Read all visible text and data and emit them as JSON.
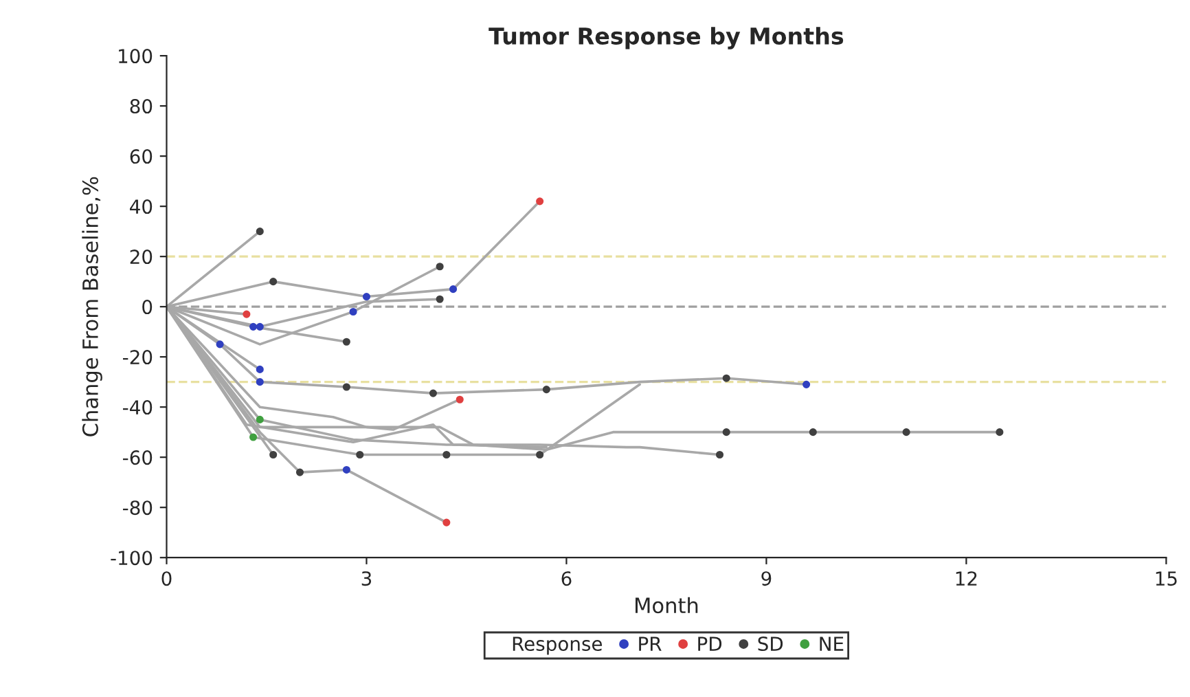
{
  "chart_data": {
    "type": "line",
    "title": "Tumor Response by Months",
    "xlabel": "Month",
    "ylabel": "Change From Baseline,%",
    "legend_title": "Response",
    "legend": "bottom",
    "grid": false,
    "marker": "none",
    "line_style": "solid",
    "xlim": [
      0,
      15
    ],
    "xticks": [
      0,
      3,
      6,
      9,
      12,
      15
    ],
    "ylim": [
      -100,
      100
    ],
    "yticks": [
      -100,
      -80,
      -60,
      -40,
      -20,
      0,
      20,
      40,
      60,
      80,
      100
    ],
    "ref_lines": [
      {
        "axis": "y",
        "value": 20,
        "color": "#e8e0a0",
        "line_style": "dashed"
      },
      {
        "axis": "y",
        "value": 0,
        "color": "#a0a0a0",
        "line_style": "dashed"
      },
      {
        "axis": "y",
        "value": -30,
        "color": "#e8e0a0",
        "line_style": "dashed"
      }
    ],
    "series": [
      {
        "color": "#a8a8a8",
        "x": [
          0,
          1.4
        ],
        "values": [
          0,
          30
        ]
      },
      {
        "color": "#a8a8a8",
        "x": [
          0,
          1.6,
          3.0,
          4.3,
          5.6
        ],
        "values": [
          0,
          10,
          4,
          7,
          42
        ]
      },
      {
        "color": "#a8a8a8",
        "x": [
          0,
          1.2
        ],
        "values": [
          0,
          -3
        ]
      },
      {
        "color": "#a8a8a8",
        "x": [
          0,
          1.3,
          2.7
        ],
        "values": [
          0,
          -8,
          -14
        ]
      },
      {
        "color": "#a8a8a8",
        "x": [
          0,
          1.4,
          3.0,
          4.1
        ],
        "values": [
          0,
          -8,
          2,
          3
        ]
      },
      {
        "color": "#a8a8a8",
        "x": [
          0,
          1.4,
          2.8,
          4.1
        ],
        "values": [
          0,
          -15,
          -2,
          16
        ]
      },
      {
        "color": "#a8a8a8",
        "x": [
          0,
          0.8,
          1.4,
          2.7,
          4.0,
          5.7,
          7.1,
          8.4,
          9.6
        ],
        "values": [
          0,
          -15,
          -30,
          -32,
          -34.5,
          -33,
          -30,
          -28.5,
          -31
        ]
      },
      {
        "color": "#a8a8a8",
        "x": [
          0,
          1.4
        ],
        "values": [
          0,
          -25
        ]
      },
      {
        "color": "#a8a8a8",
        "x": [
          0,
          1.4,
          2.5,
          3.0,
          3.4,
          4.4
        ],
        "values": [
          0,
          -40,
          -44,
          -48,
          -49,
          -37
        ]
      },
      {
        "color": "#a8a8a8",
        "x": [
          0,
          1.4,
          2.0,
          2.7,
          4.2
        ],
        "values": [
          0,
          -50,
          -66,
          -65,
          -86
        ]
      },
      {
        "color": "#a8a8a8",
        "x": [
          0,
          1.6
        ],
        "values": [
          0,
          -59
        ]
      },
      {
        "color": "#a8a8a8",
        "x": [
          0,
          1.3,
          2.9,
          4.2,
          5.6,
          7.1
        ],
        "values": [
          0,
          -52,
          -59,
          -59,
          -59,
          -31
        ]
      },
      {
        "color": "#a8a8a8",
        "x": [
          0,
          1.4,
          3.0,
          3.5,
          4.1,
          4.6,
          5.7,
          6.7,
          8.4,
          9.7,
          11.1,
          12.5
        ],
        "values": [
          0,
          -48,
          -48,
          -48,
          -48,
          -55,
          -57,
          -50,
          -50,
          -50,
          -50,
          -50
        ]
      },
      {
        "color": "#a8a8a8",
        "x": [
          0,
          1.4,
          2.8,
          4.2,
          5.6,
          6.9,
          7.1,
          8.3
        ],
        "values": [
          0,
          -45,
          -53,
          -55,
          -55,
          -56,
          -56,
          -59
        ]
      },
      {
        "color": "#a8a8a8",
        "x": [
          0,
          1.2,
          2.8,
          4.0,
          4.3,
          5.7
        ],
        "values": [
          0,
          -47,
          -54,
          -47,
          -55,
          -56
        ]
      },
      {
        "type": "scatter",
        "name": "PR",
        "color": "#3040c0",
        "marker": "circle",
        "x": [
          1.3,
          1.4,
          3.0,
          2.8,
          4.3,
          1.4,
          1.4,
          2.7,
          9.6,
          0.8
        ],
        "values": [
          -8,
          -8,
          4,
          -2,
          7,
          -25,
          -30,
          -65,
          -31,
          -15
        ]
      },
      {
        "type": "scatter",
        "name": "PD",
        "color": "#e04040",
        "marker": "circle",
        "x": [
          1.2,
          5.6,
          4.4,
          4.2
        ],
        "values": [
          -3,
          42,
          -37,
          -86
        ]
      },
      {
        "type": "scatter",
        "name": "SD",
        "color": "#404040",
        "marker": "circle",
        "x": [
          1.4,
          1.6,
          4.1,
          2.7,
          4.1,
          2.7,
          4.0,
          5.7,
          8.4,
          8.4,
          9.7,
          11.1,
          12.5,
          8.3,
          2.9,
          4.2,
          5.6,
          1.6,
          2.0
        ],
        "values": [
          30,
          10,
          3,
          -14,
          16,
          -32,
          -34.5,
          -33,
          -28.5,
          -50,
          -50,
          -50,
          -50,
          -59,
          -59,
          -59,
          -59,
          -59,
          -66
        ]
      },
      {
        "type": "scatter",
        "name": "NE",
        "color": "#40a040",
        "marker": "circle",
        "x": [
          1.4,
          1.3
        ],
        "values": [
          -45,
          -52
        ]
      }
    ]
  }
}
